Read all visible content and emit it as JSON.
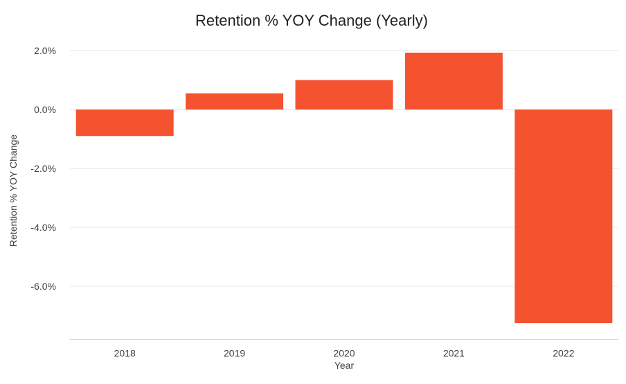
{
  "chart_data": {
    "type": "bar",
    "title": "Retention % YOY Change (Yearly)",
    "xlabel": "Year",
    "ylabel": "Retention % YOY Change",
    "categories": [
      "2018",
      "2019",
      "2020",
      "2021",
      "2022"
    ],
    "values": [
      -0.9,
      0.55,
      1.0,
      1.93,
      -7.25
    ],
    "value_unit": "%",
    "yticks": [
      2.0,
      0.0,
      -2.0,
      -4.0,
      -6.0
    ],
    "ytick_labels": [
      "2.0%",
      "0.0%",
      "-2.0%",
      "-4.0%",
      "-6.0%"
    ],
    "ylim": [
      -7.8,
      2.1
    ],
    "grid": true,
    "legend": "none",
    "bar_color": "#f5522f"
  }
}
